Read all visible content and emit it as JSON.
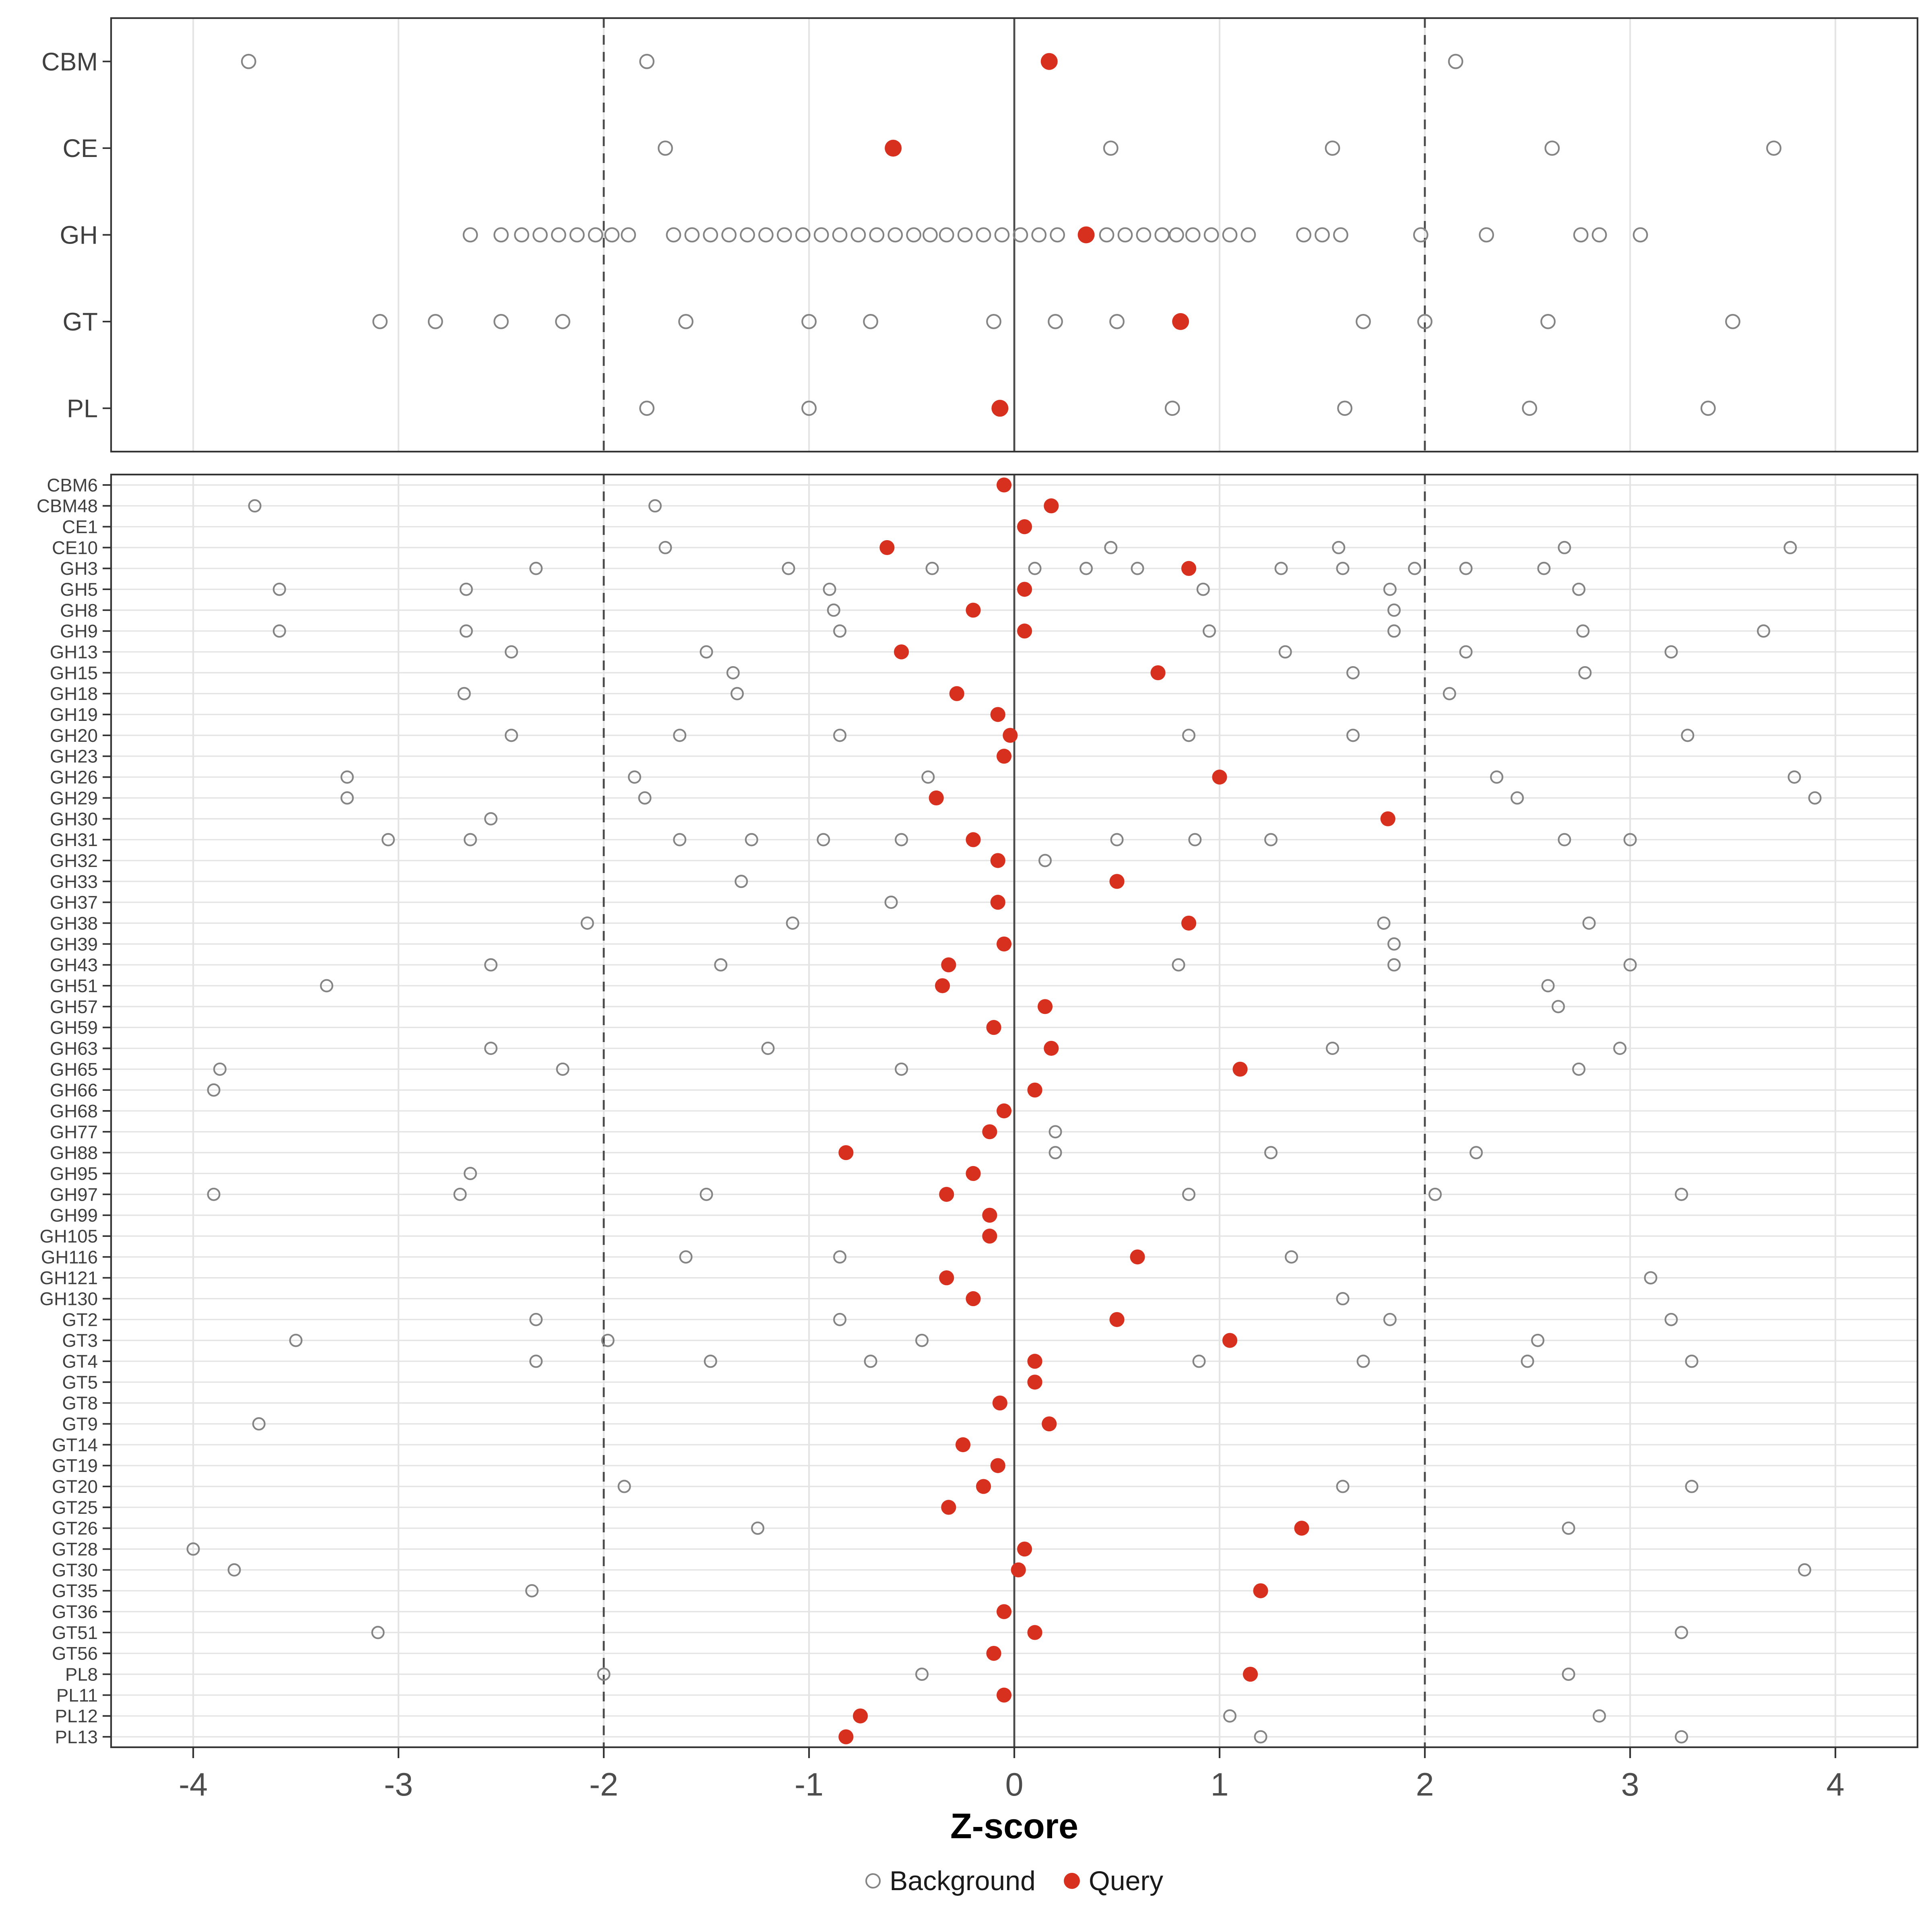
{
  "chart_data": {
    "type": "scatter",
    "title": "",
    "xlabel": "Z-score",
    "ylabel": "",
    "x_range": [
      -4.4,
      4.4
    ],
    "x_ticks": [
      -4,
      -3,
      -2,
      -1,
      0,
      1,
      2,
      3,
      4
    ],
    "grid": "on",
    "legend_position": "bottom",
    "legend": {
      "background_label": "Background",
      "query_label": "Query"
    },
    "colors": {
      "query": "#D7301F",
      "background_stroke": "#848484",
      "grid": "#E4E4E4",
      "ref": "#4A4A4A",
      "border": "#343434",
      "axis_text": "#4D4D4D",
      "y_text": "#404040"
    },
    "reference_lines": {
      "solid": [
        0
      ],
      "dashed": [
        -2,
        2
      ]
    },
    "panels": [
      {
        "name": "class",
        "rows": [
          {
            "label": "CBM",
            "query": 0.17,
            "background": [
              -3.73,
              -1.79,
              2.15
            ]
          },
          {
            "label": "CE",
            "query": -0.59,
            "background": [
              -1.7,
              0.47,
              1.55,
              2.62,
              3.7
            ]
          },
          {
            "label": "GH",
            "query": 0.35,
            "background": [
              -2.65,
              -2.5,
              -2.4,
              -2.31,
              -2.22,
              -2.13,
              -2.04,
              -1.96,
              -1.88,
              -1.66,
              -1.57,
              -1.48,
              -1.39,
              -1.3,
              -1.21,
              -1.12,
              -1.03,
              -0.94,
              -0.85,
              -0.76,
              -0.67,
              -0.58,
              -0.49,
              -0.41,
              -0.33,
              -0.24,
              -0.15,
              -0.06,
              0.03,
              0.12,
              0.21,
              0.45,
              0.54,
              0.63,
              0.72,
              0.79,
              0.87,
              0.96,
              1.05,
              1.14,
              1.41,
              1.5,
              1.59,
              1.98,
              2.3,
              2.76,
              2.85,
              3.05
            ]
          },
          {
            "label": "GT",
            "query": 0.81,
            "background": [
              -3.09,
              -2.82,
              -2.5,
              -2.2,
              -1.6,
              -1.0,
              -0.7,
              -0.1,
              0.2,
              0.5,
              1.7,
              2.0,
              2.6,
              3.5
            ]
          },
          {
            "label": "PL",
            "query": -0.07,
            "background": [
              -1.79,
              -1.0,
              0.77,
              1.61,
              2.51,
              3.38
            ]
          }
        ]
      },
      {
        "name": "family",
        "rows": [
          {
            "label": "CBM6",
            "query": -0.05,
            "background": []
          },
          {
            "label": "CBM48",
            "query": 0.18,
            "background": [
              -3.7,
              -1.75
            ]
          },
          {
            "label": "CE1",
            "query": 0.05,
            "background": []
          },
          {
            "label": "CE10",
            "query": -0.62,
            "background": [
              -1.7,
              0.47,
              1.58,
              2.68,
              3.78
            ]
          },
          {
            "label": "GH3",
            "query": 0.85,
            "background": [
              -2.33,
              -1.1,
              -0.4,
              0.1,
              0.35,
              0.6,
              1.3,
              1.6,
              1.95,
              2.2,
              2.58
            ]
          },
          {
            "label": "GH5",
            "query": 0.05,
            "background": [
              -3.58,
              -2.67,
              -0.9,
              0.92,
              1.83,
              2.75
            ]
          },
          {
            "label": "GH8",
            "query": -0.2,
            "background": [
              -0.88,
              1.85
            ]
          },
          {
            "label": "GH9",
            "query": 0.05,
            "background": [
              -3.58,
              -2.67,
              -0.85,
              0.95,
              1.85,
              2.77,
              3.65
            ]
          },
          {
            "label": "GH13",
            "query": -0.55,
            "background": [
              -2.45,
              -1.5,
              1.32,
              2.2,
              3.2
            ]
          },
          {
            "label": "GH15",
            "query": 0.7,
            "background": [
              -1.37,
              1.65,
              2.78
            ]
          },
          {
            "label": "GH18",
            "query": -0.28,
            "background": [
              -2.68,
              -1.35,
              2.12
            ]
          },
          {
            "label": "GH19",
            "query": -0.08,
            "background": []
          },
          {
            "label": "GH20",
            "query": -0.02,
            "background": [
              -2.45,
              -1.63,
              -0.85,
              0.85,
              1.65,
              3.28
            ]
          },
          {
            "label": "GH23",
            "query": -0.05,
            "background": []
          },
          {
            "label": "GH26",
            "query": 1.0,
            "background": [
              -3.25,
              -1.85,
              -0.42,
              2.35,
              3.8
            ]
          },
          {
            "label": "GH29",
            "query": -0.38,
            "background": [
              -3.25,
              -1.8,
              2.45,
              3.9
            ]
          },
          {
            "label": "GH30",
            "query": 1.82,
            "background": [
              -2.55
            ]
          },
          {
            "label": "GH31",
            "query": -0.2,
            "background": [
              -3.05,
              -2.65,
              -1.63,
              -1.28,
              -0.93,
              -0.55,
              0.5,
              0.88,
              1.25,
              2.68,
              3.0
            ]
          },
          {
            "label": "GH32",
            "query": -0.08,
            "background": [
              0.15
            ]
          },
          {
            "label": "GH33",
            "query": 0.5,
            "background": [
              -1.33
            ]
          },
          {
            "label": "GH37",
            "query": -0.08,
            "background": [
              -0.6
            ]
          },
          {
            "label": "GH38",
            "query": 0.85,
            "background": [
              -2.08,
              -1.08,
              1.8,
              2.8
            ]
          },
          {
            "label": "GH39",
            "query": -0.05,
            "background": [
              1.85
            ]
          },
          {
            "label": "GH43",
            "query": -0.32,
            "background": [
              -2.55,
              -1.43,
              0.8,
              1.85,
              3.0
            ]
          },
          {
            "label": "GH51",
            "query": -0.35,
            "background": [
              -3.35,
              2.6
            ]
          },
          {
            "label": "GH57",
            "query": 0.15,
            "background": [
              2.65
            ]
          },
          {
            "label": "GH59",
            "query": -0.1,
            "background": []
          },
          {
            "label": "GH63",
            "query": 0.18,
            "background": [
              -2.55,
              -1.2,
              1.55,
              2.95
            ]
          },
          {
            "label": "GH65",
            "query": 1.1,
            "background": [
              -3.87,
              -2.2,
              -0.55,
              2.75
            ]
          },
          {
            "label": "GH66",
            "query": 0.1,
            "background": [
              -3.9
            ]
          },
          {
            "label": "GH68",
            "query": -0.05,
            "background": []
          },
          {
            "label": "GH77",
            "query": -0.12,
            "background": [
              0.2
            ]
          },
          {
            "label": "GH88",
            "query": -0.82,
            "background": [
              0.2,
              1.25,
              2.25
            ]
          },
          {
            "label": "GH95",
            "query": -0.2,
            "background": [
              -2.65
            ]
          },
          {
            "label": "GH97",
            "query": -0.33,
            "background": [
              -3.9,
              -2.7,
              -1.5,
              0.85,
              2.05,
              3.25
            ]
          },
          {
            "label": "GH99",
            "query": -0.12,
            "background": []
          },
          {
            "label": "GH105",
            "query": -0.12,
            "background": []
          },
          {
            "label": "GH116",
            "query": 0.6,
            "background": [
              -1.6,
              -0.85,
              1.35
            ]
          },
          {
            "label": "GH121",
            "query": -0.33,
            "background": [
              3.1
            ]
          },
          {
            "label": "GH130",
            "query": -0.2,
            "background": [
              1.6
            ]
          },
          {
            "label": "GT2",
            "query": 0.5,
            "background": [
              -2.33,
              -0.85,
              1.83,
              3.2
            ]
          },
          {
            "label": "GT3",
            "query": 1.05,
            "background": [
              -3.5,
              -1.98,
              -0.45,
              2.55
            ]
          },
          {
            "label": "GT4",
            "query": 0.1,
            "background": [
              -2.33,
              -1.48,
              -0.7,
              0.9,
              1.7,
              2.5,
              3.3
            ]
          },
          {
            "label": "GT5",
            "query": 0.1,
            "background": []
          },
          {
            "label": "GT8",
            "query": -0.07,
            "background": []
          },
          {
            "label": "GT9",
            "query": 0.17,
            "background": [
              -3.68
            ]
          },
          {
            "label": "GT14",
            "query": -0.25,
            "background": []
          },
          {
            "label": "GT19",
            "query": -0.08,
            "background": []
          },
          {
            "label": "GT20",
            "query": -0.15,
            "background": [
              -1.9,
              1.6,
              3.3
            ]
          },
          {
            "label": "GT25",
            "query": -0.32,
            "background": []
          },
          {
            "label": "GT26",
            "query": 1.4,
            "background": [
              -1.25,
              2.7
            ]
          },
          {
            "label": "GT28",
            "query": 0.05,
            "background": [
              -4.0
            ]
          },
          {
            "label": "GT30",
            "query": 0.02,
            "background": [
              -3.8,
              3.85
            ]
          },
          {
            "label": "GT35",
            "query": 1.2,
            "background": [
              -2.35
            ]
          },
          {
            "label": "GT36",
            "query": -0.05,
            "background": []
          },
          {
            "label": "GT51",
            "query": 0.1,
            "background": [
              -3.1,
              3.25
            ]
          },
          {
            "label": "GT56",
            "query": -0.1,
            "background": []
          },
          {
            "label": "PL8",
            "query": 1.15,
            "background": [
              -2.0,
              -0.45,
              2.7
            ]
          },
          {
            "label": "PL11",
            "query": -0.05,
            "background": []
          },
          {
            "label": "PL12",
            "query": -0.75,
            "background": [
              1.05,
              2.85
            ]
          },
          {
            "label": "PL13",
            "query": -0.82,
            "background": [
              1.2,
              3.25
            ]
          }
        ]
      }
    ]
  }
}
